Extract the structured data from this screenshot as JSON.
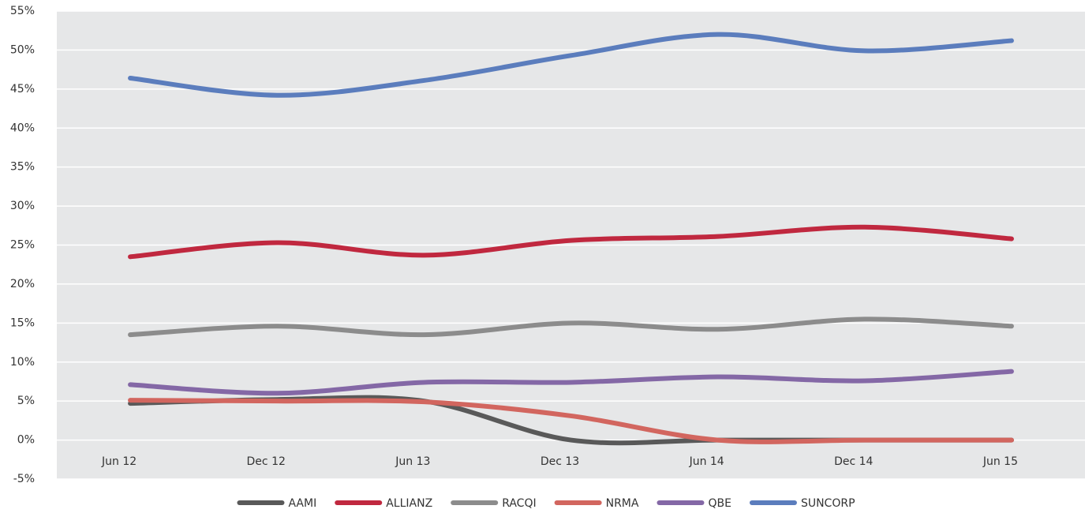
{
  "chart_data": {
    "type": "line",
    "categories": [
      "Jun 12",
      "Dec 12",
      "Jun 13",
      "Dec 13",
      "Jun 14",
      "Dec 14",
      "Jun 15"
    ],
    "series": [
      {
        "name": "AAMI",
        "color": "#595959",
        "values": [
          4.7,
          5.2,
          5.0,
          0,
          0,
          0,
          0
        ]
      },
      {
        "name": "ALLIANZ",
        "color": "#c0283f",
        "values": [
          23.5,
          25.3,
          23.7,
          25.6,
          26.1,
          27.3,
          25.8
        ]
      },
      {
        "name": "RACQI",
        "color": "#8c8c8c",
        "values": [
          13.5,
          14.6,
          13.5,
          15.0,
          14.2,
          15.5,
          14.6
        ]
      },
      {
        "name": "NRMA",
        "color": "#d2665f",
        "values": [
          5.1,
          5.0,
          4.9,
          3.1,
          0,
          0,
          0
        ]
      },
      {
        "name": "QBE",
        "color": "#8468a6",
        "values": [
          7.1,
          6.0,
          7.4,
          7.4,
          8.1,
          7.6,
          8.8
        ]
      },
      {
        "name": "SUNCORP",
        "color": "#5b7dbd",
        "values": [
          46.4,
          44.2,
          46.1,
          49.3,
          52.0,
          49.9,
          51.2
        ]
      }
    ],
    "ylim": [
      -5,
      55
    ],
    "yticks": [
      {
        "value": -5,
        "label": "-5%"
      },
      {
        "value": 0,
        "label": "0%"
      },
      {
        "value": 5,
        "label": "5%"
      },
      {
        "value": 10,
        "label": "10%"
      },
      {
        "value": 15,
        "label": "15%"
      },
      {
        "value": 20,
        "label": "20%"
      },
      {
        "value": 25,
        "label": "25%"
      },
      {
        "value": 30,
        "label": "30%"
      },
      {
        "value": 35,
        "label": "35%"
      },
      {
        "value": 40,
        "label": "40%"
      },
      {
        "value": 45,
        "label": "45%"
      },
      {
        "value": 50,
        "label": "50%"
      },
      {
        "value": 55,
        "label": "55%"
      }
    ],
    "grid": true,
    "legend": "bottom"
  }
}
